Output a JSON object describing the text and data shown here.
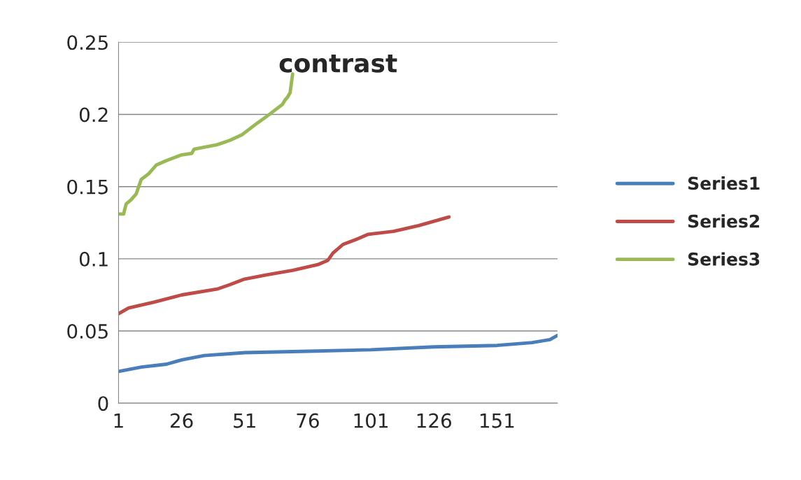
{
  "chart_data": {
    "type": "line",
    "title": "contrast",
    "xlim": [
      1,
      175
    ],
    "xticks": [
      1,
      26,
      51,
      76,
      101,
      126,
      151
    ],
    "ylim": [
      0,
      0.25
    ],
    "yticks": [
      0,
      0.05,
      0.1,
      0.15,
      0.2,
      0.25
    ],
    "grid": "y",
    "legend": "right",
    "marker": "none",
    "line_style": "solid",
    "series": [
      {
        "name": "Series1",
        "color": "#4a7ebb",
        "x": [
          1,
          10,
          20,
          26,
          35,
          51,
          76,
          101,
          126,
          151,
          165,
          172,
          175
        ],
        "values": [
          0.022,
          0.025,
          0.027,
          0.03,
          0.033,
          0.035,
          0.036,
          0.037,
          0.039,
          0.04,
          0.042,
          0.044,
          0.047
        ]
      },
      {
        "name": "Series2",
        "color": "#be4b48",
        "x": [
          1,
          5,
          15,
          26,
          40,
          45,
          51,
          60,
          70,
          80,
          84,
          86,
          90,
          96,
          100,
          110,
          120,
          132
        ],
        "values": [
          0.062,
          0.066,
          0.07,
          0.075,
          0.079,
          0.082,
          0.086,
          0.089,
          0.092,
          0.096,
          0.099,
          0.104,
          0.11,
          0.114,
          0.117,
          0.119,
          0.123,
          0.129
        ]
      },
      {
        "name": "Series3",
        "color": "#98b954",
        "x": [
          1,
          3,
          4,
          6,
          8,
          10,
          13,
          16,
          20,
          26,
          30,
          31,
          40,
          45,
          50,
          53,
          56,
          60,
          63,
          66,
          67,
          68,
          69,
          70
        ],
        "values": [
          0.131,
          0.131,
          0.138,
          0.141,
          0.145,
          0.155,
          0.159,
          0.165,
          0.168,
          0.172,
          0.173,
          0.176,
          0.179,
          0.182,
          0.186,
          0.19,
          0.194,
          0.199,
          0.203,
          0.207,
          0.21,
          0.212,
          0.215,
          0.228
        ]
      }
    ]
  }
}
